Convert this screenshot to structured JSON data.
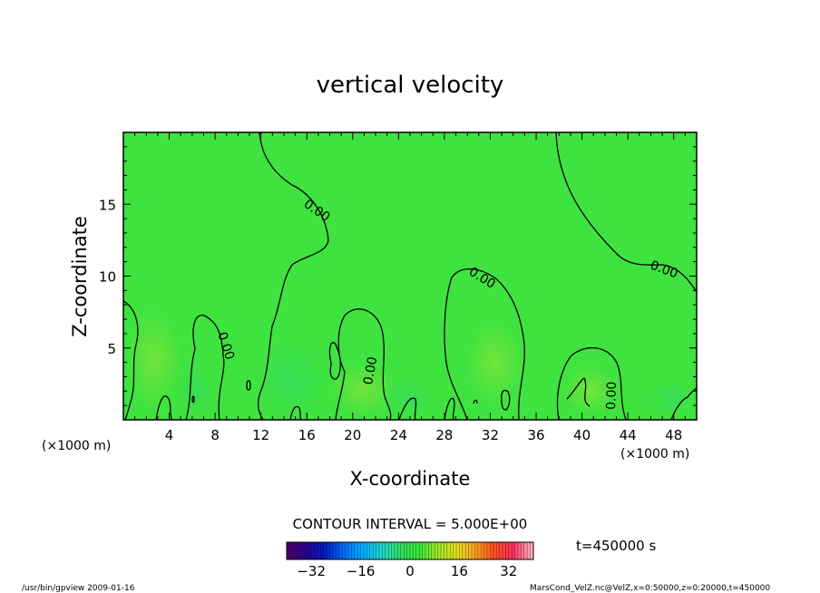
{
  "chart_data": {
    "type": "heatmap",
    "title": "vertical velocity",
    "xlabel": "X-coordinate",
    "ylabel": "Z-coordinate",
    "x_unit_label": "(×1000 m)",
    "y_unit_label": "(×1000 m)",
    "xlim": [
      0,
      50
    ],
    "ylim": [
      0,
      20
    ],
    "x_ticks": [
      "4",
      "8",
      "12",
      "16",
      "20",
      "24",
      "28",
      "32",
      "36",
      "40",
      "44",
      "48"
    ],
    "y_ticks": [
      "5",
      "10",
      "15"
    ],
    "contour_interval_text": "CONTOUR INTERVAL = 5.000E+00",
    "contour_value_label": "0.00",
    "colorbar": {
      "min": -40,
      "max": 40,
      "tick_labels": [
        "−32",
        "−16",
        "0",
        "16",
        "32"
      ],
      "colors": [
        "#4b0069",
        "#2a0090",
        "#0020c0",
        "#0070ff",
        "#00b0ff",
        "#20d8d0",
        "#30e060",
        "#38e838",
        "#a0e828",
        "#e8e020",
        "#ffa020",
        "#ff5020",
        "#ff3060",
        "#ffb0c0"
      ]
    },
    "field_color": "#3fe33f",
    "time_label": "t=450000 s",
    "footer_left": "/usr/bin/gpview   2009-01-16",
    "footer_right": "MarsCond_VelZ.nc@VelZ,x=0:50000,z=0:20000,t=450000",
    "grid": false
  }
}
